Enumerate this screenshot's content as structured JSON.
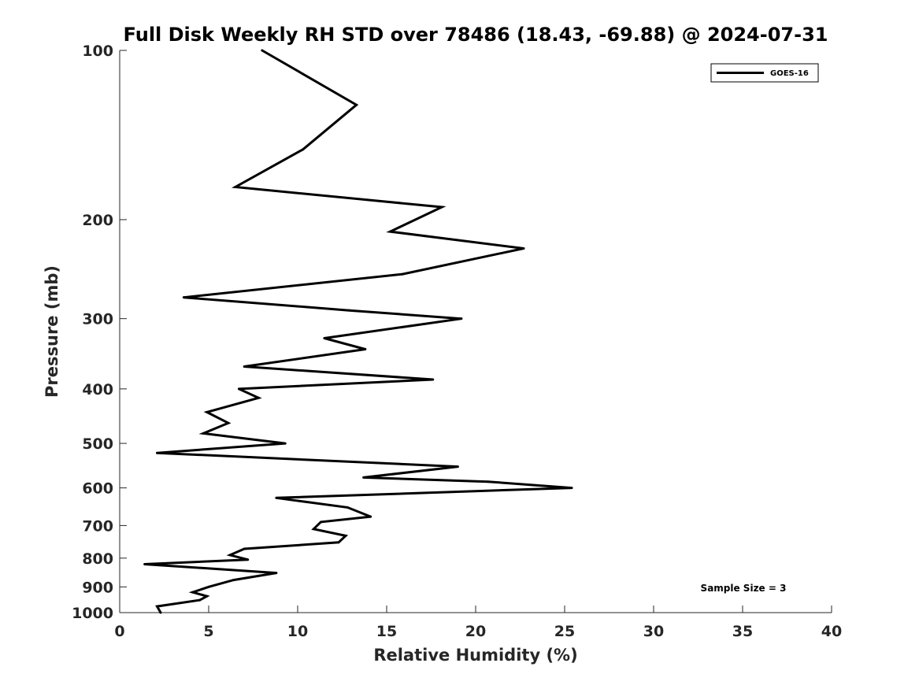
{
  "chart_data": {
    "type": "line",
    "title": "Full Disk Weekly RH STD over 78486 (18.43, -69.88) @ 2024-07-31",
    "xlabel": "Relative Humidity (%)",
    "ylabel": "Pressure (mb)",
    "xlim": [
      0,
      40
    ],
    "ylim": [
      100,
      1000
    ],
    "yscale": "log",
    "y_reversed": true,
    "xticks": [
      0,
      5,
      10,
      15,
      20,
      25,
      30,
      35,
      40
    ],
    "yticks": [
      100,
      200,
      300,
      400,
      500,
      600,
      700,
      800,
      900,
      1000
    ],
    "grid": false,
    "legend_position": "top-right",
    "annotation": "Sample Size = 3",
    "series": [
      {
        "name": "GOES-16",
        "color": "#000000",
        "x": [
          8.0,
          13.3,
          10.3,
          6.5,
          18.1,
          15.2,
          22.7,
          15.9,
          3.6,
          12.9,
          19.2,
          11.5,
          13.8,
          7.0,
          17.6,
          6.7,
          7.8,
          4.9,
          6.1,
          4.7,
          9.3,
          2.1,
          19.0,
          13.7,
          20.7,
          25.4,
          8.8,
          12.8,
          14.1,
          11.3,
          10.9,
          12.7,
          12.3,
          7.0,
          6.2,
          7.2,
          1.4,
          8.8,
          6.4,
          5.0,
          4.1,
          4.9,
          4.5,
          2.1,
          2.3
        ],
        "y": [
          100,
          125,
          150,
          175,
          190,
          210,
          225,
          250,
          275,
          290,
          300,
          325,
          340,
          365,
          385,
          400,
          415,
          440,
          460,
          480,
          500,
          520,
          550,
          575,
          585,
          600,
          625,
          650,
          675,
          690,
          710,
          730,
          750,
          770,
          790,
          805,
          820,
          850,
          875,
          900,
          920,
          935,
          950,
          975,
          1000
        ]
      }
    ]
  }
}
